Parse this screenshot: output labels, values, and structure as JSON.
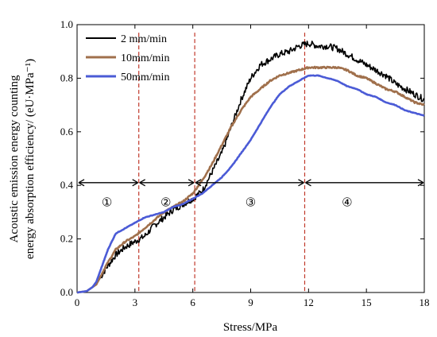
{
  "chart_data": {
    "type": "line",
    "title": "",
    "xlabel": "Stress/MPa",
    "ylabel_line1": "Acoustic emission energy counting",
    "ylabel_line2": "energy absorption efficiency/ (eU·MPa⁻¹)",
    "xlim": [
      0,
      18
    ],
    "ylim": [
      0,
      1.0
    ],
    "xticks": [
      "0",
      "3",
      "6",
      "9",
      "12",
      "15",
      "18"
    ],
    "yticks": [
      "0.0",
      "0.2",
      "0.4",
      "0.6",
      "0.8",
      "1.0"
    ],
    "grid": false,
    "legend_position": "top-left",
    "series": [
      {
        "name": "2 mm/min",
        "color": "#000000",
        "points": [
          [
            0,
            0
          ],
          [
            0.5,
            0.005
          ],
          [
            1,
            0.03
          ],
          [
            1.5,
            0.09
          ],
          [
            2,
            0.14
          ],
          [
            2.5,
            0.17
          ],
          [
            3,
            0.19
          ],
          [
            3.5,
            0.21
          ],
          [
            4,
            0.25
          ],
          [
            4.5,
            0.28
          ],
          [
            5,
            0.31
          ],
          [
            5.5,
            0.33
          ],
          [
            6,
            0.35
          ],
          [
            6.5,
            0.38
          ],
          [
            7,
            0.45
          ],
          [
            7.5,
            0.52
          ],
          [
            8,
            0.62
          ],
          [
            8.5,
            0.72
          ],
          [
            9,
            0.8
          ],
          [
            9.5,
            0.85
          ],
          [
            10,
            0.87
          ],
          [
            10.5,
            0.89
          ],
          [
            11,
            0.9
          ],
          [
            11.5,
            0.92
          ],
          [
            12,
            0.93
          ],
          [
            12.5,
            0.92
          ],
          [
            13,
            0.92
          ],
          [
            13.5,
            0.91
          ],
          [
            14,
            0.89
          ],
          [
            14.5,
            0.87
          ],
          [
            15,
            0.85
          ],
          [
            15.5,
            0.83
          ],
          [
            16,
            0.81
          ],
          [
            16.5,
            0.78
          ],
          [
            17,
            0.76
          ],
          [
            17.5,
            0.74
          ],
          [
            18,
            0.72
          ]
        ]
      },
      {
        "name": "10mm/min",
        "color": "#a0704c",
        "points": [
          [
            0,
            0
          ],
          [
            0.5,
            0.005
          ],
          [
            1,
            0.03
          ],
          [
            1.5,
            0.1
          ],
          [
            2,
            0.16
          ],
          [
            2.5,
            0.19
          ],
          [
            3,
            0.21
          ],
          [
            3.5,
            0.24
          ],
          [
            4,
            0.27
          ],
          [
            4.5,
            0.3
          ],
          [
            5,
            0.32
          ],
          [
            5.5,
            0.34
          ],
          [
            6,
            0.37
          ],
          [
            6.5,
            0.42
          ],
          [
            7,
            0.48
          ],
          [
            7.5,
            0.55
          ],
          [
            8,
            0.62
          ],
          [
            8.5,
            0.68
          ],
          [
            9,
            0.73
          ],
          [
            9.5,
            0.76
          ],
          [
            10,
            0.79
          ],
          [
            10.5,
            0.81
          ],
          [
            11,
            0.82
          ],
          [
            11.5,
            0.83
          ],
          [
            12,
            0.84
          ],
          [
            12.5,
            0.84
          ],
          [
            13,
            0.84
          ],
          [
            13.5,
            0.84
          ],
          [
            14,
            0.83
          ],
          [
            14.5,
            0.81
          ],
          [
            15,
            0.8
          ],
          [
            15.5,
            0.78
          ],
          [
            16,
            0.76
          ],
          [
            16.5,
            0.75
          ],
          [
            17,
            0.73
          ],
          [
            17.5,
            0.71
          ],
          [
            18,
            0.7
          ]
        ]
      },
      {
        "name": "50mm/min",
        "color": "#4b5bd6",
        "points": [
          [
            0,
            0
          ],
          [
            0.5,
            0.005
          ],
          [
            0.8,
            0.02
          ],
          [
            1,
            0.04
          ],
          [
            1.3,
            0.1
          ],
          [
            1.6,
            0.16
          ],
          [
            2,
            0.22
          ],
          [
            2.5,
            0.24
          ],
          [
            3,
            0.26
          ],
          [
            3.5,
            0.28
          ],
          [
            4,
            0.29
          ],
          [
            4.5,
            0.3
          ],
          [
            5,
            0.32
          ],
          [
            5.5,
            0.33
          ],
          [
            6,
            0.35
          ],
          [
            6.5,
            0.37
          ],
          [
            7,
            0.4
          ],
          [
            7.5,
            0.43
          ],
          [
            8,
            0.47
          ],
          [
            8.5,
            0.52
          ],
          [
            9,
            0.57
          ],
          [
            9.5,
            0.63
          ],
          [
            10,
            0.69
          ],
          [
            10.5,
            0.74
          ],
          [
            11,
            0.77
          ],
          [
            11.5,
            0.79
          ],
          [
            12,
            0.81
          ],
          [
            12.5,
            0.81
          ],
          [
            13,
            0.8
          ],
          [
            13.5,
            0.79
          ],
          [
            14,
            0.77
          ],
          [
            14.5,
            0.76
          ],
          [
            15,
            0.74
          ],
          [
            15.5,
            0.73
          ],
          [
            16,
            0.71
          ],
          [
            16.5,
            0.7
          ],
          [
            17,
            0.68
          ],
          [
            17.5,
            0.67
          ],
          [
            18,
            0.66
          ]
        ]
      }
    ],
    "boundaries": [
      3.2,
      6.1,
      11.8
    ],
    "boundary_color": "#c0392b",
    "arrow_y": 0.41,
    "phases": [
      {
        "label": "①",
        "x": 1.55,
        "y": 0.34
      },
      {
        "label": "②",
        "x": 4.6,
        "y": 0.34
      },
      {
        "label": "③",
        "x": 9.0,
        "y": 0.34
      },
      {
        "label": "④",
        "x": 14.0,
        "y": 0.34
      }
    ]
  }
}
